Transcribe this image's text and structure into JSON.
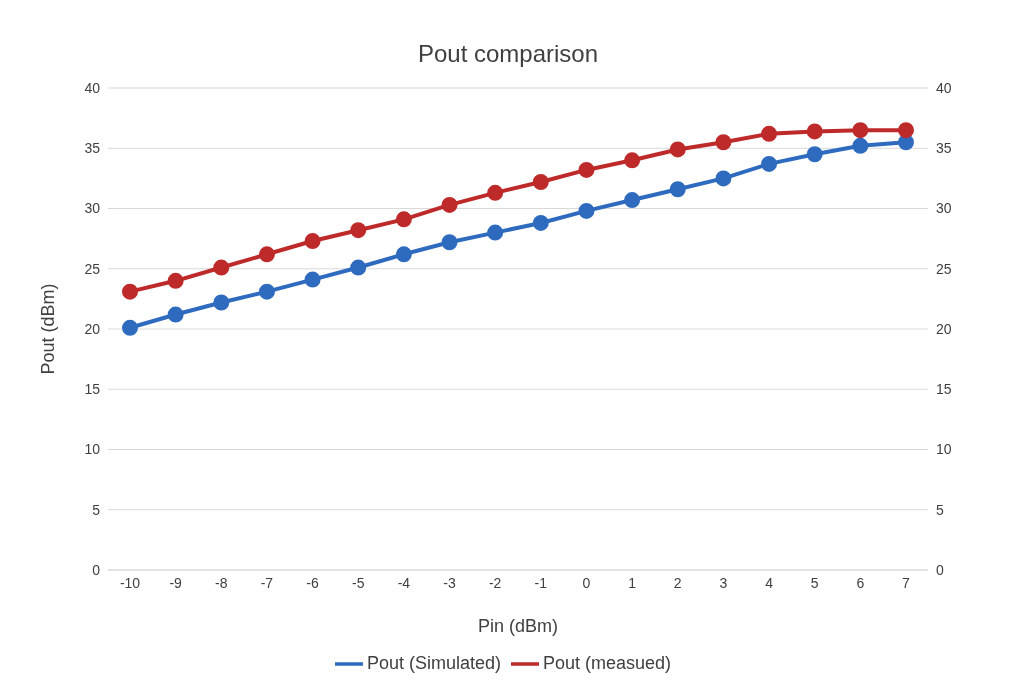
{
  "chart_data": {
    "type": "line",
    "title": "Pout comparison",
    "xlabel": "Pin (dBm)",
    "ylabel": "Pout (dBm)",
    "categories": [
      "-10",
      "-9",
      "-8",
      "-7",
      "-6",
      "-5",
      "-4",
      "-3",
      "-2",
      "-1",
      "0",
      "1",
      "2",
      "3",
      "4",
      "5",
      "6",
      "7"
    ],
    "series": [
      {
        "name": "Pout (Simulated)",
        "color": "#2e6bbf",
        "values": [
          20.1,
          21.2,
          22.2,
          23.1,
          24.1,
          25.1,
          26.2,
          27.2,
          28.0,
          28.8,
          29.8,
          30.7,
          31.6,
          32.5,
          33.7,
          34.5,
          35.2,
          35.5
        ]
      },
      {
        "name": "Pout (measued)",
        "color": "#be2a2a",
        "values": [
          23.1,
          24.0,
          25.1,
          26.2,
          27.3,
          28.2,
          29.1,
          30.3,
          31.3,
          32.2,
          33.2,
          34.0,
          34.9,
          35.5,
          36.2,
          36.4,
          36.5,
          36.5
        ]
      }
    ],
    "ylim": [
      0,
      40
    ],
    "yticks": [
      0,
      5,
      10,
      15,
      20,
      25,
      30,
      35,
      40
    ],
    "y2lim": [
      0,
      40
    ],
    "y2ticks": [
      0,
      5,
      10,
      15,
      20,
      25,
      30,
      35,
      40
    ],
    "grid": "y",
    "legend": "bottom",
    "marker": "circle",
    "line_style": "solid"
  }
}
